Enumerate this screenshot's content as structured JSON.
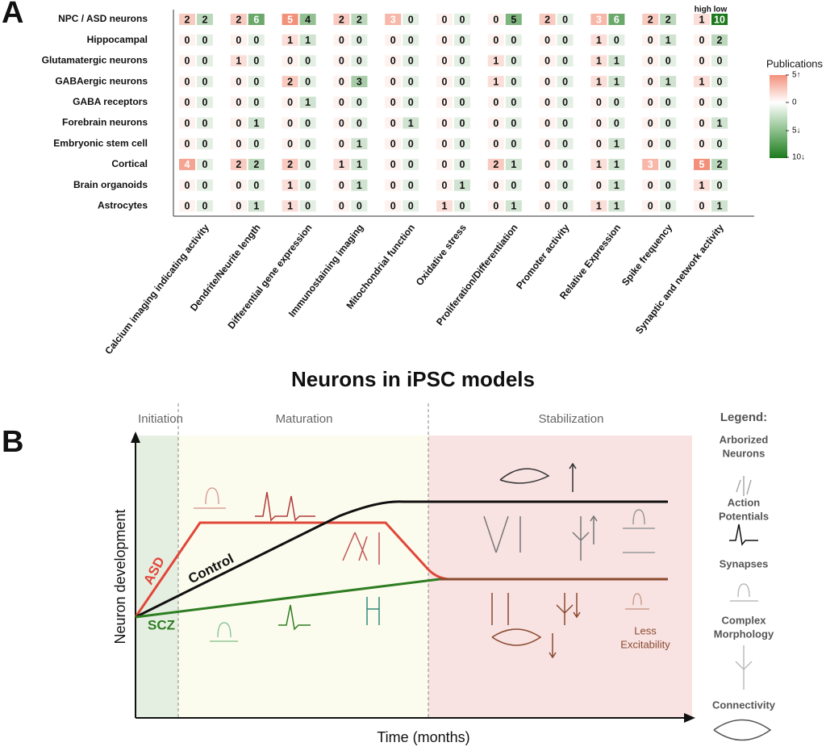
{
  "panel_a": {
    "label": "A",
    "pair_header": "high low",
    "columns": [
      "Calcium imaging indicating activity",
      "Dendrite/Neurite length",
      "Differential gene expression",
      "Immunostaining imaging",
      "Mitochondrial function",
      "Oxidative stress",
      "Proliferation/Differentiation",
      "Promoter activity",
      "Relative Expression",
      "Spike frequency",
      "Synaptic and network activity"
    ],
    "rows": [
      {
        "label": "NPC / ASD neurons",
        "values": [
          [
            2,
            2
          ],
          [
            2,
            6
          ],
          [
            5,
            4
          ],
          [
            2,
            2
          ],
          [
            3,
            0
          ],
          [
            0,
            0
          ],
          [
            0,
            5
          ],
          [
            2,
            0
          ],
          [
            3,
            6
          ],
          [
            2,
            2
          ],
          [
            1,
            10
          ]
        ]
      },
      {
        "label": "Hippocampal",
        "values": [
          [
            0,
            0
          ],
          [
            0,
            0
          ],
          [
            1,
            1
          ],
          [
            0,
            0
          ],
          [
            0,
            0
          ],
          [
            0,
            0
          ],
          [
            0,
            0
          ],
          [
            0,
            0
          ],
          [
            1,
            0
          ],
          [
            0,
            1
          ],
          [
            0,
            2
          ]
        ]
      },
      {
        "label": "Glutamatergic neurons",
        "values": [
          [
            0,
            0
          ],
          [
            1,
            0
          ],
          [
            0,
            0
          ],
          [
            0,
            0
          ],
          [
            0,
            0
          ],
          [
            0,
            0
          ],
          [
            1,
            0
          ],
          [
            0,
            0
          ],
          [
            1,
            1
          ],
          [
            0,
            0
          ],
          [
            0,
            0
          ]
        ]
      },
      {
        "label": "GABAergic neurons",
        "values": [
          [
            0,
            0
          ],
          [
            0,
            0
          ],
          [
            2,
            0
          ],
          [
            0,
            3
          ],
          [
            0,
            0
          ],
          [
            0,
            0
          ],
          [
            1,
            0
          ],
          [
            0,
            0
          ],
          [
            1,
            1
          ],
          [
            0,
            1
          ],
          [
            1,
            0
          ]
        ]
      },
      {
        "label": "GABA receptors",
        "values": [
          [
            0,
            0
          ],
          [
            0,
            0
          ],
          [
            0,
            1
          ],
          [
            0,
            0
          ],
          [
            0,
            0
          ],
          [
            0,
            0
          ],
          [
            0,
            0
          ],
          [
            0,
            0
          ],
          [
            0,
            0
          ],
          [
            0,
            0
          ],
          [
            0,
            0
          ]
        ]
      },
      {
        "label": "Forebrain neurons",
        "values": [
          [
            0,
            0
          ],
          [
            0,
            1
          ],
          [
            0,
            0
          ],
          [
            0,
            0
          ],
          [
            0,
            1
          ],
          [
            0,
            0
          ],
          [
            0,
            0
          ],
          [
            0,
            0
          ],
          [
            0,
            0
          ],
          [
            0,
            0
          ],
          [
            0,
            1
          ]
        ]
      },
      {
        "label": "Embryonic stem cell",
        "values": [
          [
            0,
            0
          ],
          [
            0,
            0
          ],
          [
            0,
            0
          ],
          [
            0,
            1
          ],
          [
            0,
            0
          ],
          [
            0,
            0
          ],
          [
            0,
            0
          ],
          [
            0,
            0
          ],
          [
            0,
            1
          ],
          [
            0,
            0
          ],
          [
            0,
            0
          ]
        ]
      },
      {
        "label": "Cortical",
        "values": [
          [
            4,
            0
          ],
          [
            2,
            2
          ],
          [
            2,
            0
          ],
          [
            1,
            1
          ],
          [
            0,
            0
          ],
          [
            0,
            0
          ],
          [
            2,
            1
          ],
          [
            0,
            0
          ],
          [
            1,
            1
          ],
          [
            3,
            0
          ],
          [
            5,
            2
          ]
        ]
      },
      {
        "label": "Brain organoids",
        "values": [
          [
            0,
            0
          ],
          [
            0,
            0
          ],
          [
            1,
            0
          ],
          [
            0,
            1
          ],
          [
            0,
            0
          ],
          [
            0,
            1
          ],
          [
            0,
            0
          ],
          [
            0,
            0
          ],
          [
            0,
            1
          ],
          [
            0,
            0
          ],
          [
            1,
            0
          ]
        ]
      },
      {
        "label": "Astrocytes",
        "values": [
          [
            0,
            0
          ],
          [
            0,
            1
          ],
          [
            1,
            0
          ],
          [
            0,
            0
          ],
          [
            0,
            0
          ],
          [
            1,
            0
          ],
          [
            0,
            1
          ],
          [
            0,
            0
          ],
          [
            1,
            1
          ],
          [
            0,
            0
          ],
          [
            0,
            1
          ]
        ]
      }
    ],
    "legend": {
      "title": "Publications",
      "labels": [
        "5↑",
        "0",
        "5↓",
        "10↓"
      ],
      "high_max": 5,
      "low_max": 10
    }
  },
  "title": "Neurons in iPSC models",
  "panel_b": {
    "label": "B",
    "phases": [
      "Initiation",
      "Maturation",
      "Stabilization"
    ],
    "y_axis": "Neuron development",
    "x_axis": "Time (months)",
    "curves": [
      "ASD",
      "Control",
      "SCZ"
    ],
    "note": [
      "Less",
      "Excitability"
    ],
    "legend_title": "Legend:",
    "legend_items": [
      [
        "Arborized",
        "Neurons"
      ],
      [
        "Action",
        "Potentials"
      ],
      [
        "Synapses"
      ],
      [
        "Complex",
        "Morphology"
      ],
      [
        "Connectivity"
      ]
    ]
  }
}
